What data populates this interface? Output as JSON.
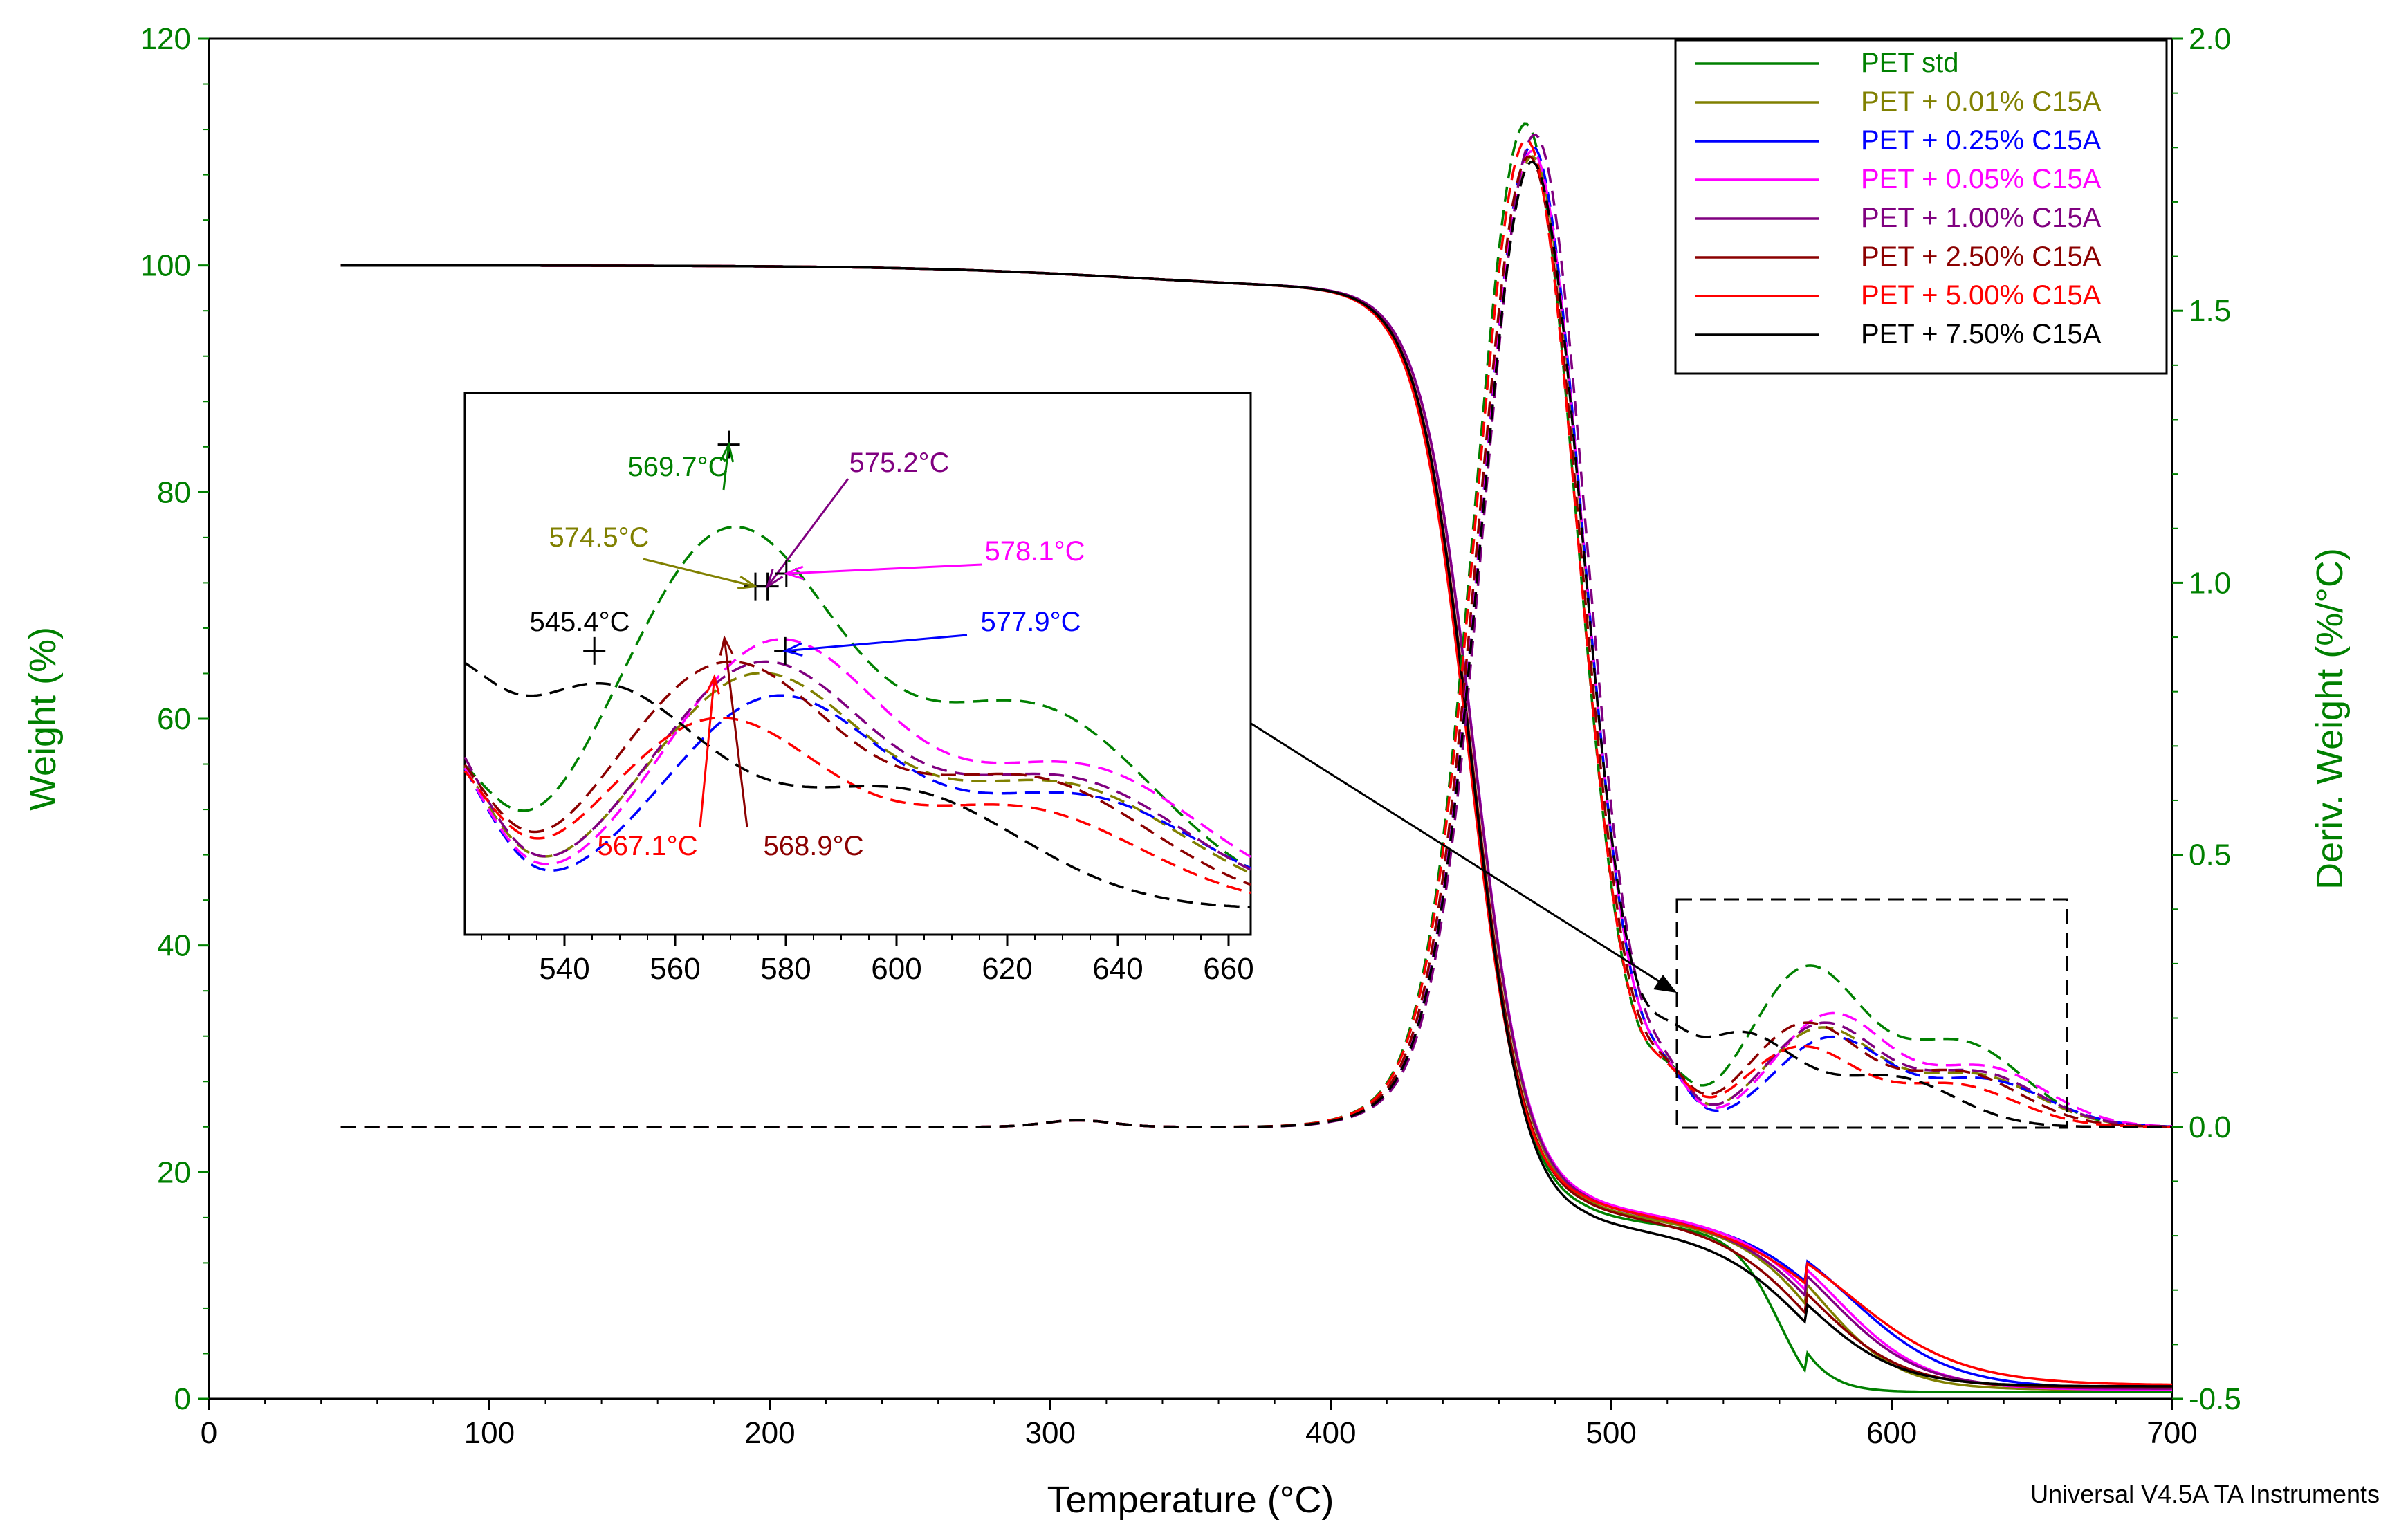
{
  "chart_data": {
    "type": "line",
    "title": "",
    "xlabel": "Temperature (°C)",
    "ylabel_left": "Weight (%)",
    "ylabel_right": "Deriv. Weight (%/°C)",
    "xlim": [
      0,
      700
    ],
    "ylim_left": [
      0,
      120
    ],
    "ylim_right": [
      -0.5,
      2.0
    ],
    "x_ticks": [
      "0",
      "100",
      "200",
      "300",
      "400",
      "500",
      "600",
      "700"
    ],
    "y_left_ticks": [
      "0",
      "20",
      "40",
      "60",
      "80",
      "100",
      "120"
    ],
    "y_right_ticks": [
      "-0.5",
      "0.0",
      "0.5",
      "1.0",
      "1.5",
      "2.0"
    ],
    "axis_color": "#008000",
    "footer": "Universal V4.5A TA Instruments",
    "legend_position": "top-right",
    "series": [
      {
        "name": "PET std",
        "color": "#008000",
        "onset": 400,
        "mid": 450,
        "plateau": 16.0,
        "final": 0.6,
        "step_center": 560,
        "step_width": 8,
        "peak_height": 1.82,
        "peak_T": 469.7,
        "bump_T": 569.7,
        "bump_height": 0.34
      },
      {
        "name": "PET + 0.01% C15A",
        "color": "#808000",
        "onset": 400,
        "mid": 451,
        "plateau": 16.5,
        "final": 0.8,
        "step_center": 575,
        "step_width": 14,
        "peak_height": 1.76,
        "peak_T": 472,
        "bump_T": 574.5,
        "bump_height": 0.21
      },
      {
        "name": "PET + 0.25% C15A",
        "color": "#0000FF",
        "onset": 398,
        "mid": 451,
        "plateau": 17.0,
        "final": 0.9,
        "step_center": 585,
        "step_width": 18,
        "peak_height": 1.78,
        "peak_T": 472,
        "bump_T": 577.9,
        "bump_height": 0.19
      },
      {
        "name": "PET + 0.05% C15A",
        "color": "#FF00FF",
        "onset": 398,
        "mid": 451,
        "plateau": 17.0,
        "final": 0.8,
        "step_center": 580,
        "step_width": 16,
        "peak_height": 1.77,
        "peak_T": 472,
        "bump_T": 578.1,
        "bump_height": 0.24
      },
      {
        "name": "PET + 1.00% C15A",
        "color": "#800080",
        "onset": 400,
        "mid": 451,
        "plateau": 16.8,
        "final": 0.9,
        "step_center": 578,
        "step_width": 16,
        "peak_height": 1.8,
        "peak_T": 473,
        "bump_T": 575.2,
        "bump_height": 0.22
      },
      {
        "name": "PET + 2.50% C15A",
        "color": "#8B0000",
        "onset": 398,
        "mid": 450,
        "plateau": 16.5,
        "final": 1.0,
        "step_center": 572,
        "step_width": 16,
        "peak_height": 1.76,
        "peak_T": 471,
        "bump_T": 568.9,
        "bump_height": 0.22
      },
      {
        "name": "PET + 5.00% C15A",
        "color": "#FF0000",
        "onset": 395,
        "mid": 449,
        "plateau": 17.0,
        "final": 1.2,
        "step_center": 585,
        "step_width": 20,
        "peak_height": 1.79,
        "peak_T": 470,
        "bump_T": 567.1,
        "bump_height": 0.17
      },
      {
        "name": "PET + 7.50% C15A",
        "color": "#000000",
        "onset": 402,
        "mid": 450,
        "plateau": 15.5,
        "final": 1.1,
        "step_center": 570,
        "step_width": 16,
        "peak_height": 1.75,
        "peak_T": 472,
        "bump_T": 545.4,
        "bump_height": 0.2
      }
    ],
    "inset": {
      "xlim": [
        522,
        664
      ],
      "ylim": [
        -0.02,
        0.4
      ],
      "x_ticks": [
        "540",
        "560",
        "580",
        "600",
        "620",
        "640",
        "660"
      ],
      "annotations": [
        {
          "label": "569.7°C",
          "color": "#008000",
          "T": 569.7
        },
        {
          "label": "574.5°C",
          "color": "#808000",
          "T": 574.5
        },
        {
          "label": "575.2°C",
          "color": "#800080",
          "T": 575.2
        },
        {
          "label": "578.1°C",
          "color": "#FF00FF",
          "T": 578.1
        },
        {
          "label": "577.9°C",
          "color": "#0000FF",
          "T": 577.9
        },
        {
          "label": "545.4°C",
          "color": "#000000",
          "T": 545.4
        },
        {
          "label": "567.1°C",
          "color": "#FF0000",
          "T": 567.1
        },
        {
          "label": "568.9°C",
          "color": "#8B0000",
          "T": 568.9
        }
      ]
    }
  }
}
